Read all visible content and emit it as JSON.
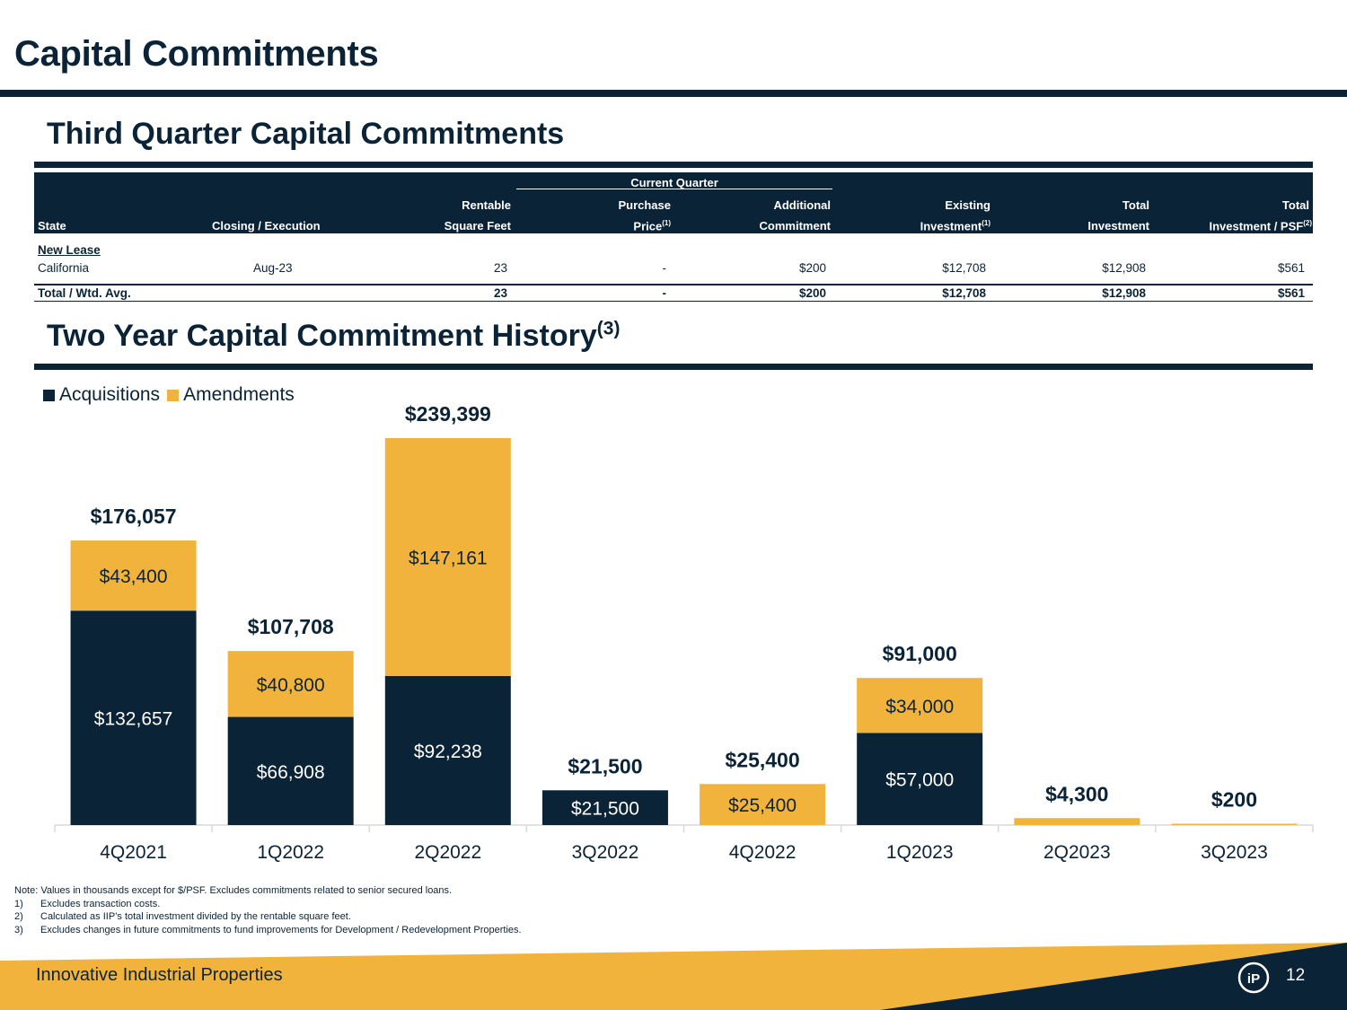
{
  "page": {
    "title": "Capital Commitments"
  },
  "section1": {
    "title": "Third Quarter Capital Commitments"
  },
  "table": {
    "group_header": "Current Quarter",
    "headers": {
      "state": "State",
      "closing": "Closing / Execution",
      "rentable_1": "Rentable",
      "rentable_2": "Square Feet",
      "purchase_1": "Purchase",
      "purchase_2": "Price",
      "purchase_sup": "(1)",
      "additional_1": "Additional",
      "additional_2": "Commitment",
      "existing_1": "Existing",
      "existing_2": "Investment",
      "existing_sup": "(1)",
      "total_1": "Total",
      "total_2": "Investment",
      "psf_1": "Total",
      "psf_2": "Investment / PSF",
      "psf_sup": "(2)"
    },
    "group_label": "New Lease",
    "row": {
      "state": "California",
      "closing": "Aug-23",
      "sqft": "23",
      "purchase": "-",
      "additional": "$200",
      "existing": "$12,708",
      "total": "$12,908",
      "psf": "$561"
    },
    "total_row": {
      "label": "Total / Wtd. Avg.",
      "sqft": "23",
      "purchase": "-",
      "additional": "$200",
      "existing": "$12,708",
      "total": "$12,908",
      "psf": "$561"
    }
  },
  "section2": {
    "title": "Two Year Capital Commitment History",
    "sup": "(3)"
  },
  "chart_data": {
    "type": "bar",
    "stacked": true,
    "categories": [
      "4Q2021",
      "1Q2022",
      "2Q2022",
      "3Q2022",
      "4Q2022",
      "1Q2023",
      "2Q2023",
      "3Q2023"
    ],
    "series": [
      {
        "name": "Acquisitions",
        "color": "#0b2336",
        "values": [
          132657,
          66908,
          92238,
          21500,
          0,
          57000,
          0,
          0
        ],
        "labels": [
          "$132,657",
          "$66,908",
          "$92,238",
          "$21,500",
          "",
          "$57,000",
          "",
          ""
        ]
      },
      {
        "name": "Amendments",
        "color": "#f2b33d",
        "values": [
          43400,
          40800,
          147161,
          0,
          25400,
          34000,
          4300,
          200
        ],
        "labels": [
          "$43,400",
          "$40,800",
          "$147,161",
          "",
          "$25,400",
          "$34,000",
          "",
          ""
        ]
      }
    ],
    "totals": [
      176057,
      107708,
      239399,
      21500,
      25400,
      91000,
      4300,
      200
    ],
    "total_labels": [
      "$176,057",
      "$107,708",
      "$239,399",
      "$21,500",
      "$25,400",
      "$91,000",
      "$4,300",
      "$200"
    ],
    "legend": [
      "Acquisitions",
      "Amendments"
    ],
    "legend_position": "top-left",
    "ylim": [
      0,
      239399
    ],
    "grid": false
  },
  "notes": {
    "main": "Note: Values in thousands except for $/PSF. Excludes commitments related to senior secured loans.",
    "items": [
      {
        "num": "1)",
        "text": "Excludes transaction costs."
      },
      {
        "num": "2)",
        "text": "Calculated as IIP’s total investment divided by the rentable square feet."
      },
      {
        "num": "3)",
        "text": "Excludes changes in future commitments to fund improvements for Development / Redevelopment Properties."
      }
    ]
  },
  "footer": {
    "company": "Innovative Industrial Properties",
    "page_number": "12",
    "logo_text": "iP"
  },
  "colors": {
    "navy": "#0b2336",
    "gold": "#f2b33d"
  }
}
